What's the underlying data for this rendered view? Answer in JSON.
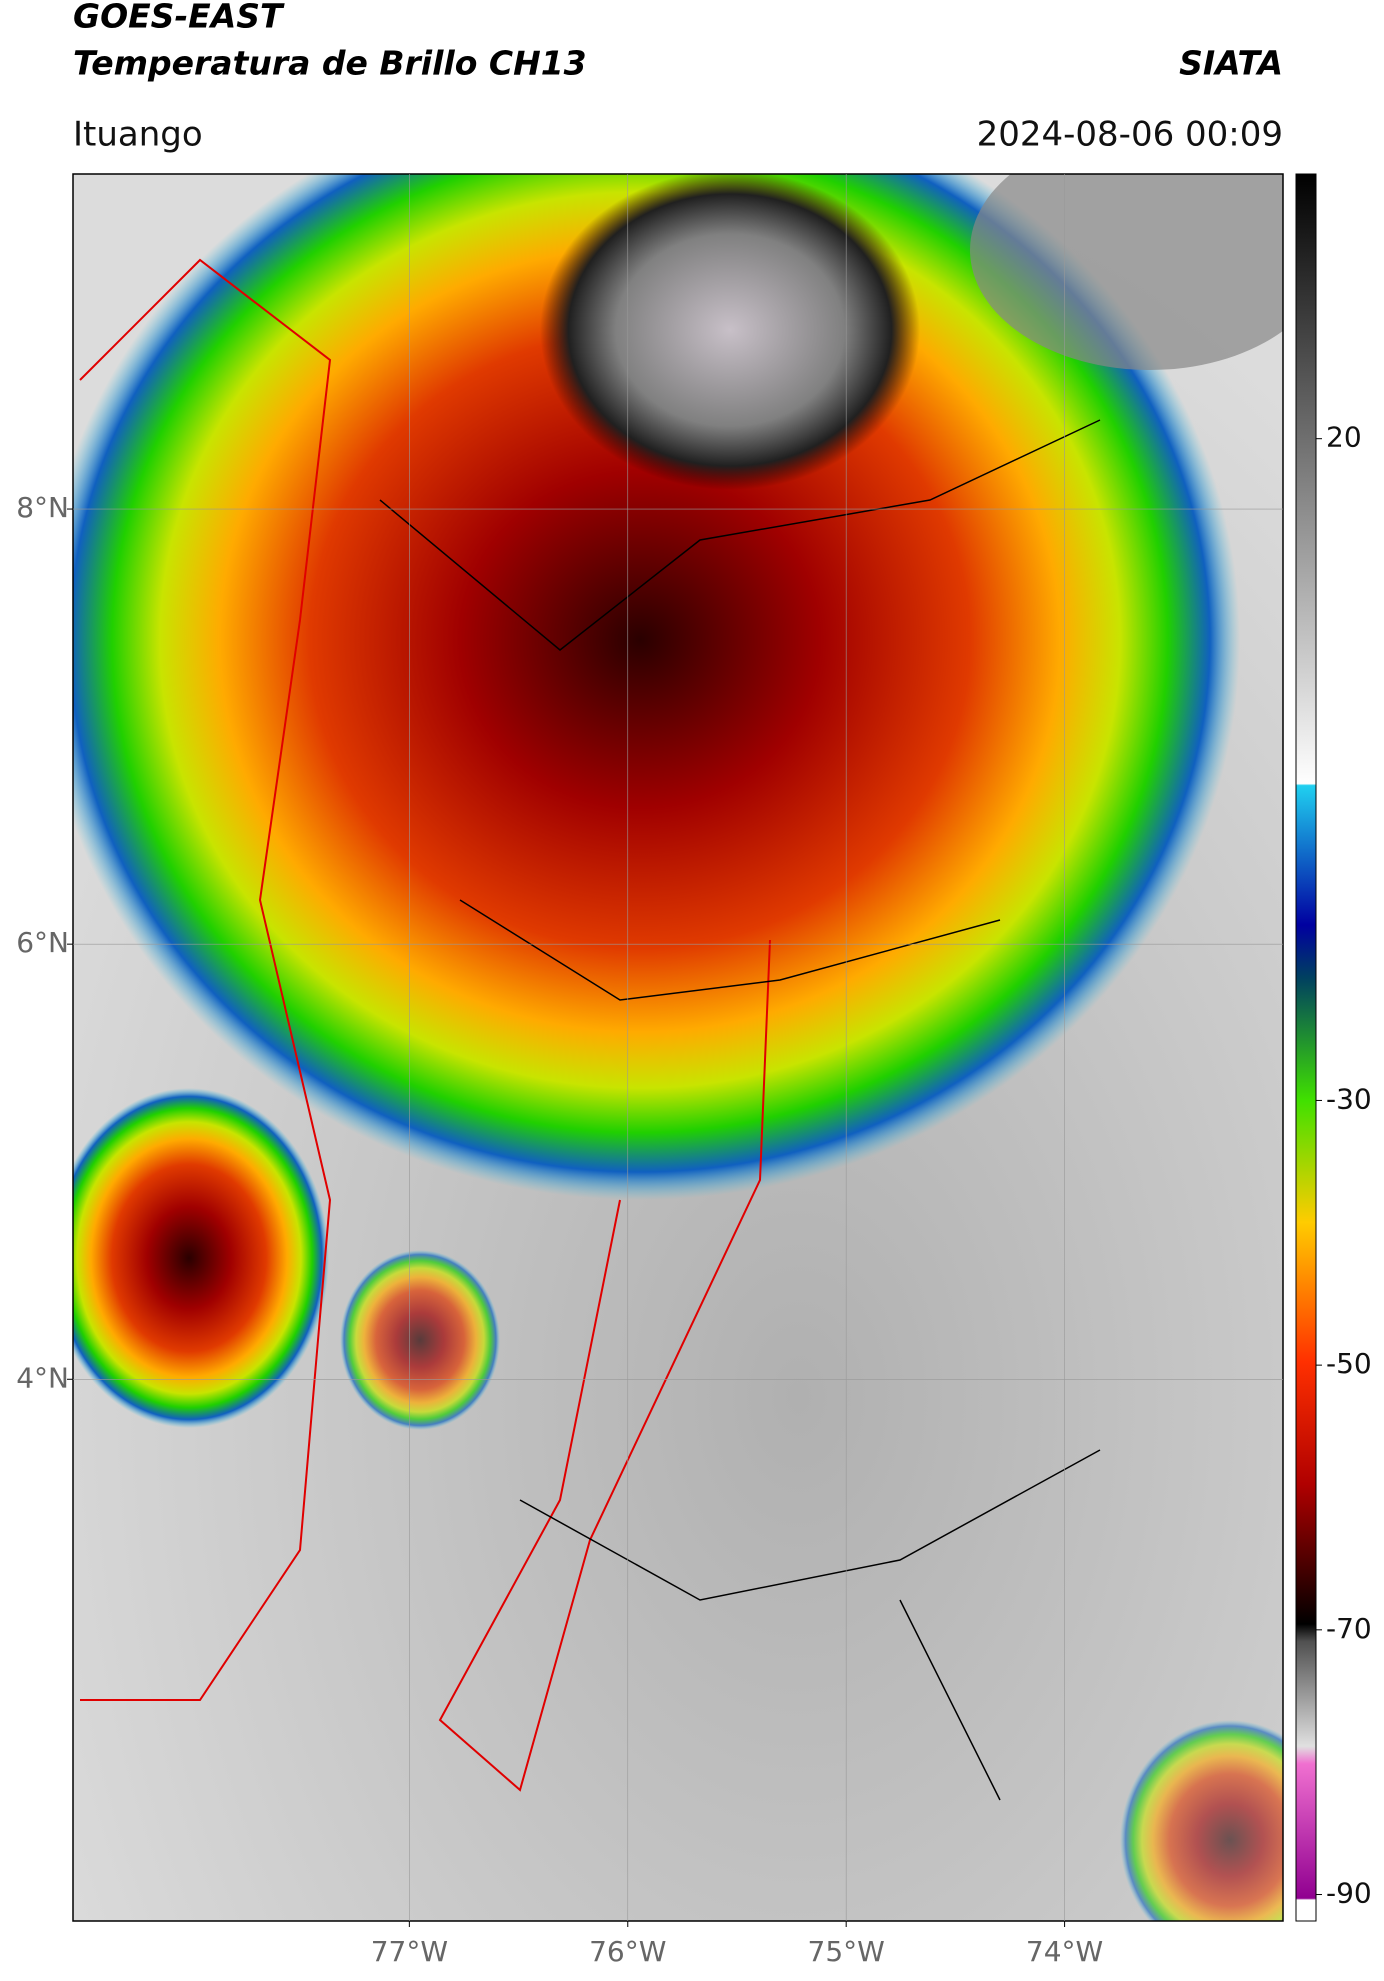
{
  "header": {
    "satellite": "GOES-EAST",
    "product": "Temperatura de Brillo CH13",
    "org": "SIATA",
    "location": "Ituango",
    "datetime": "2024-08-06 00:09"
  },
  "map": {
    "xlim": [
      -78.54,
      -73.0
    ],
    "ylim": [
      1.51,
      9.54
    ],
    "xticks": [
      {
        "value": -77,
        "label": "77°W"
      },
      {
        "value": -76,
        "label": "76°W"
      },
      {
        "value": -75,
        "label": "75°W"
      },
      {
        "value": -74,
        "label": "74°W"
      }
    ],
    "yticks": [
      {
        "value": 8,
        "label": "8°N"
      },
      {
        "value": 6,
        "label": "6°N"
      },
      {
        "value": 4,
        "label": "4°N"
      }
    ],
    "grid": true
  },
  "colorbar": {
    "clim": [
      -92,
      40
    ],
    "ticks": [
      20,
      -30,
      -50,
      -70,
      -90
    ]
  }
}
